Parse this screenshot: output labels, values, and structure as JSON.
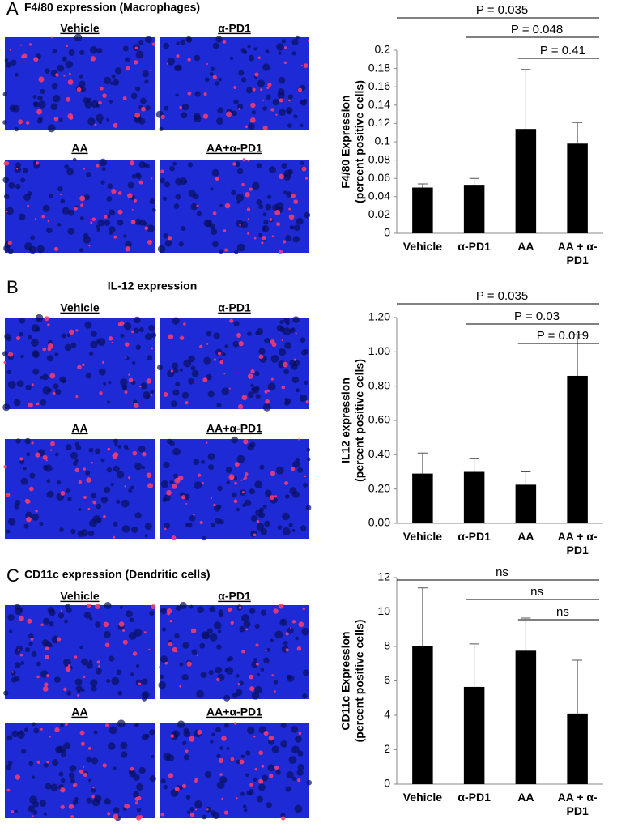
{
  "panels": [
    {
      "letter": "A",
      "title": "F4/80 expression (Macrophages)",
      "images": [
        "Vehicle",
        "α-PD1",
        "AA",
        "AA+α-PD1"
      ]
    },
    {
      "letter": "B",
      "title": "IL-12 expression",
      "images": [
        "Vehicle",
        "α-PD1",
        "AA",
        "AA+α-PD1"
      ]
    },
    {
      "letter": "C",
      "title": "CD11c expression (Dendritic cells)",
      "images": [
        "Vehicle",
        "α-PD1",
        "AA",
        "AA+α-PD1"
      ]
    }
  ],
  "chart_data": [
    {
      "type": "bar",
      "ylabel": [
        "F4/80 Expression",
        "(percent positive cells)"
      ],
      "categories": [
        "Vehicle",
        "α-PD1",
        "AA",
        "AA + α-PD1"
      ],
      "values": [
        0.05,
        0.053,
        0.114,
        0.098
      ],
      "errors": [
        0.004,
        0.007,
        0.065,
        0.023
      ],
      "color": "#000000",
      "ylim": [
        0,
        0.2
      ],
      "yticks": [
        0,
        0.02,
        0.04,
        0.06,
        0.08,
        0.1,
        0.12,
        0.14,
        0.16,
        0.18,
        0.2
      ],
      "annotations": [
        "P = 0.035",
        "P = 0.048",
        "P = 0.41"
      ]
    },
    {
      "type": "bar",
      "ylabel": [
        "IL12 expression",
        "(percent positive cells)"
      ],
      "categories": [
        "Vehicle",
        "α-PD1",
        "AA",
        "AA + α-PD1"
      ],
      "values": [
        0.29,
        0.3,
        0.225,
        0.86
      ],
      "errors": [
        0.12,
        0.08,
        0.075,
        0.24
      ],
      "color": "#000000",
      "ylim": [
        0,
        1.2
      ],
      "yticks": [
        {
          "value": 0,
          "label": "0.00"
        },
        {
          "value": 0.2,
          "label": "0.20"
        },
        {
          "value": 0.4,
          "label": "0.40"
        },
        {
          "value": 0.6,
          "label": "0.60"
        },
        {
          "value": 0.8,
          "label": "0.80"
        },
        {
          "value": 1,
          "label": "1.00"
        },
        {
          "value": 1.2,
          "label": "1.20"
        }
      ],
      "annotations": [
        "P = 0.035",
        "P = 0.03",
        "P = 0.019"
      ]
    },
    {
      "type": "bar",
      "ylabel": [
        "CD11c Expression",
        "(percent positive cells)"
      ],
      "categories": [
        "Vehicle",
        "α-PD1",
        "AA",
        "AA + α-PD1"
      ],
      "values": [
        8.0,
        5.65,
        7.75,
        4.1
      ],
      "errors": [
        3.4,
        2.5,
        1.9,
        3.1
      ],
      "color": "#000000",
      "ylim": [
        0,
        12
      ],
      "yticks": [
        0,
        2,
        4,
        6,
        8,
        10,
        12
      ],
      "annotations": [
        "ns",
        "ns",
        "ns"
      ]
    }
  ]
}
